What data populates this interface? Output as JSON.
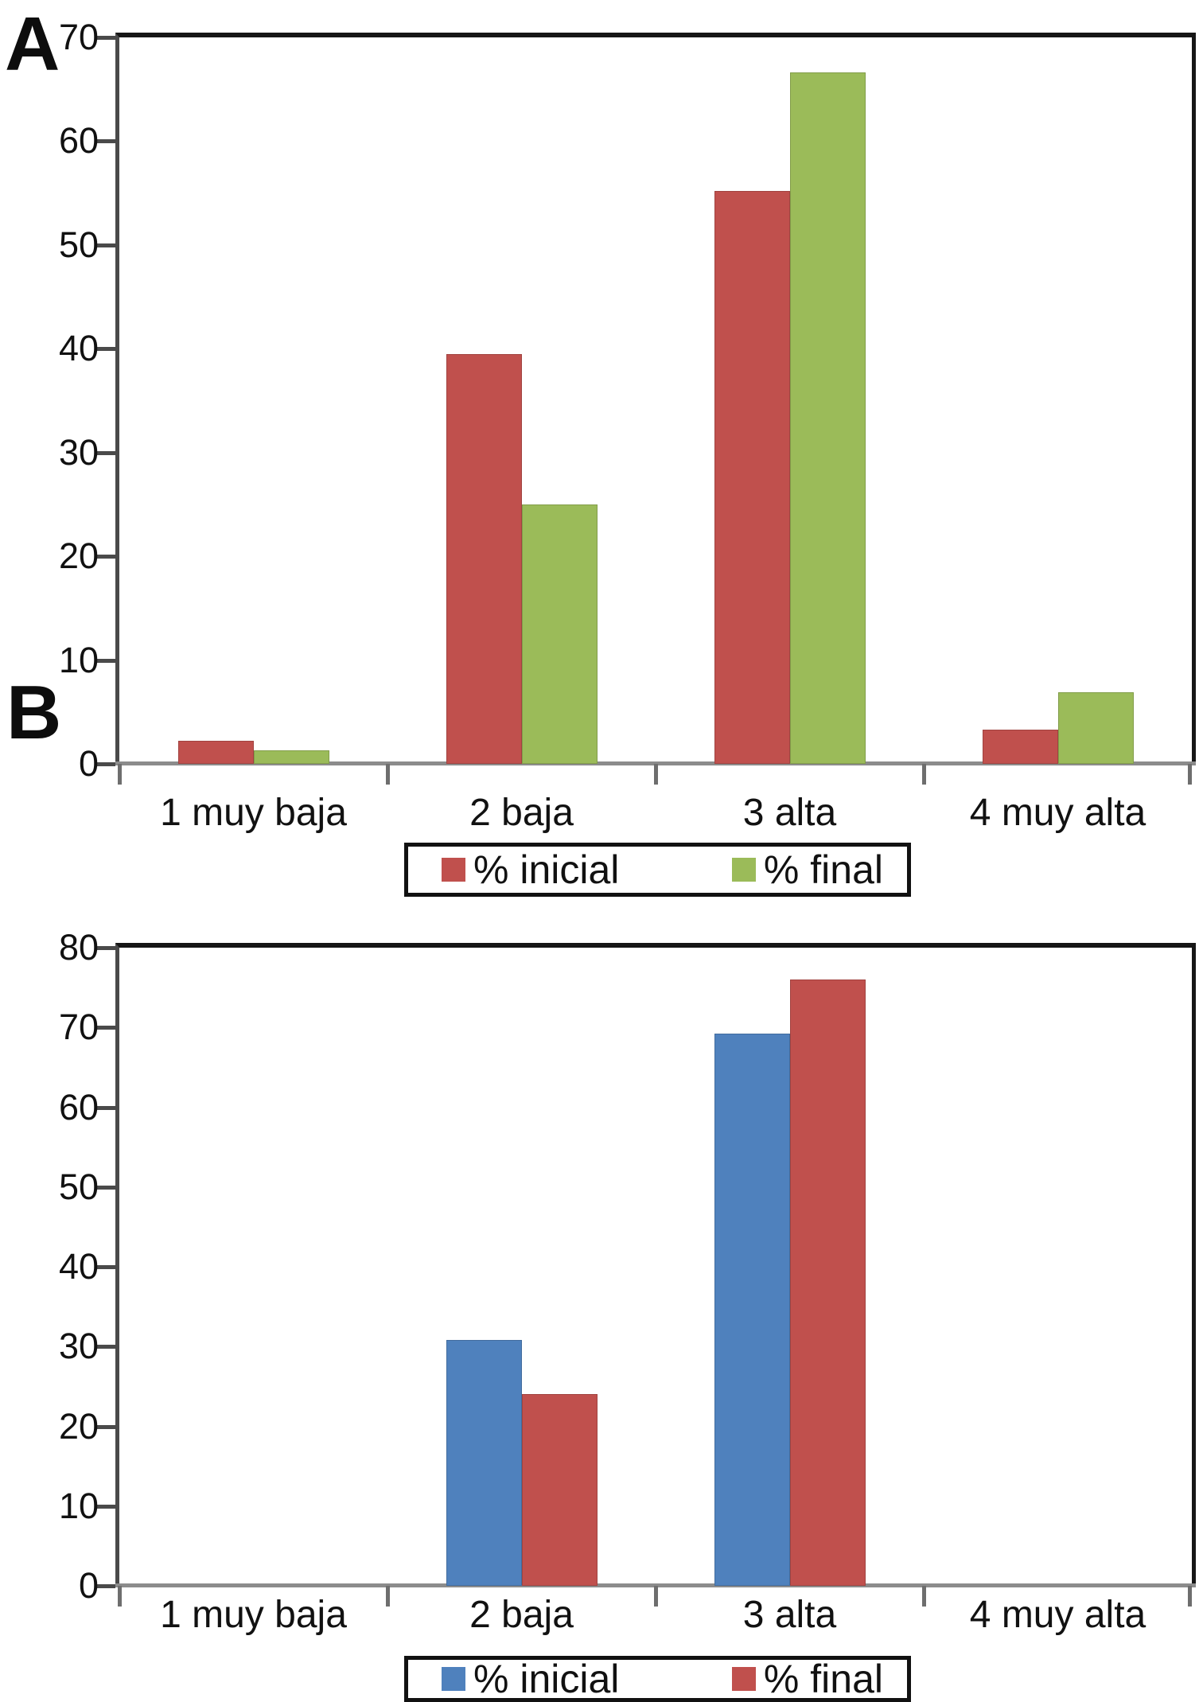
{
  "figure": {
    "background": "#ffffff",
    "text_color": "#111111",
    "style": {
      "border_top": "#161616",
      "axis_left": "#4a4a4a",
      "baseline": "#8c8c8c",
      "tick_color": "#4a4a4a",
      "legend_border": "#111111"
    }
  },
  "chart_data": [
    {
      "type": "bar",
      "panel_label": "A",
      "categories": [
        "1 muy baja",
        "2 baja",
        "3 alta",
        "4 muy alta"
      ],
      "series": [
        {
          "name": "% inicial",
          "color": "#c0504d",
          "values": [
            2.2,
            39.5,
            55.2,
            3.3
          ]
        },
        {
          "name": "% final",
          "color": "#9bbb59",
          "values": [
            1.3,
            25.0,
            66.6,
            6.9
          ]
        }
      ],
      "ylim": [
        0,
        70
      ],
      "ytick_step": 10,
      "yticks": [
        0,
        10,
        20,
        30,
        40,
        50,
        60,
        70
      ],
      "grid": false,
      "legend_position": "bottom"
    },
    {
      "type": "bar",
      "panel_label": "B",
      "categories": [
        "1 muy baja",
        "2 baja",
        "3 alta",
        "4 muy alta"
      ],
      "series": [
        {
          "name": "% inicial",
          "color": "#4f81bd",
          "values": [
            0,
            30.8,
            69.2,
            0
          ]
        },
        {
          "name": "% final",
          "color": "#c0504d",
          "values": [
            0,
            24.0,
            76.0,
            0
          ]
        }
      ],
      "ylim": [
        0,
        80
      ],
      "ytick_step": 10,
      "yticks": [
        0,
        10,
        20,
        30,
        40,
        50,
        60,
        70,
        80
      ],
      "grid": false,
      "legend_position": "bottom"
    }
  ]
}
